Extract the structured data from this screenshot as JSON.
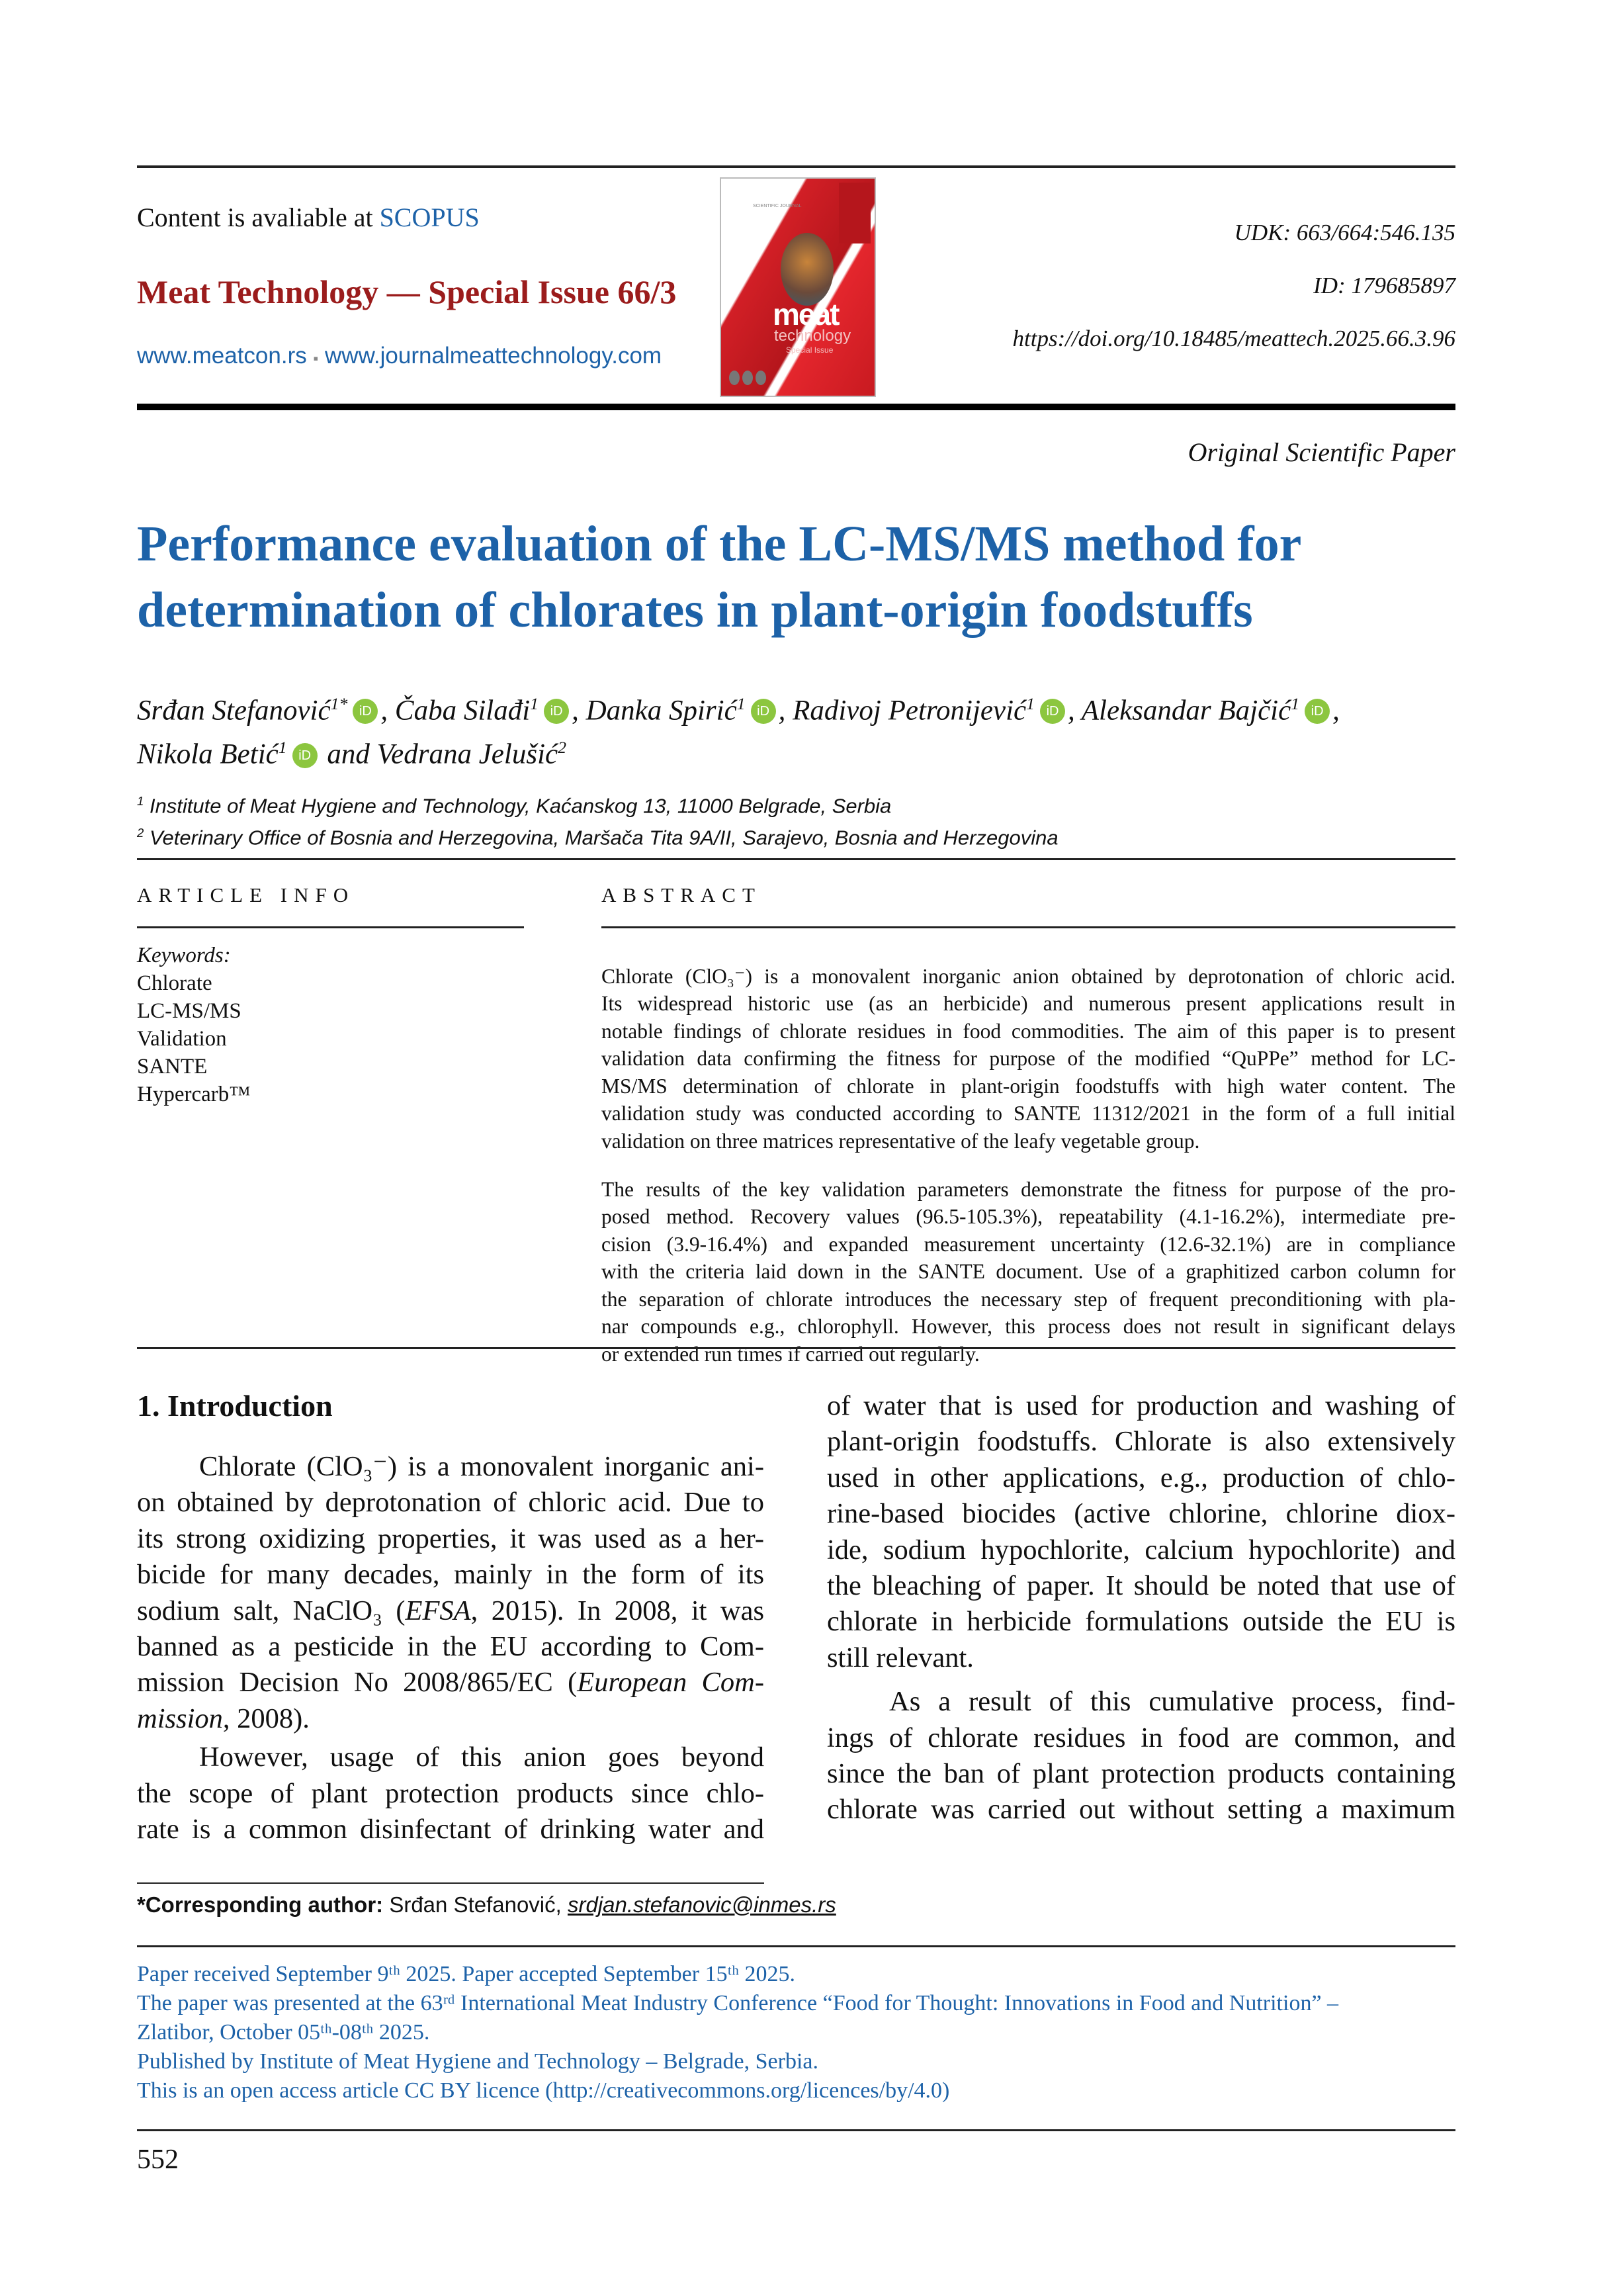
{
  "header": {
    "content_prefix": "Content is avaliable at ",
    "content_link": "SCOPUS",
    "journal_title": "Meat Technology — Special Issue 66/3",
    "site1": "www.meatcon.rs",
    "separator": "▪",
    "site2": "www.journalmeattechnology.com",
    "udk": "UDK: 663/664:546.135",
    "id": "ID: 179685897",
    "doi": "https://doi.org/10.18485/meattech.2025.66.3.96",
    "cover": {
      "journal_label": "SCIENTIFIC JOURNAL",
      "logo_main": "meat",
      "logo_sub": "technology",
      "logo_issue": "Special Issue"
    }
  },
  "paper_type": "Original Scientific Paper",
  "title_lines": [
    "Performance evaluation of the LC-MS/MS method for",
    "determination of chlorates in plant-origin foodstuffs"
  ],
  "authors": [
    {
      "name": "Srđan Stefanović",
      "sup": "1*",
      "sep": ", "
    },
    {
      "name": "Čaba Silađi",
      "sup": "1",
      "sep": ", "
    },
    {
      "name": "Danka Spirić",
      "sup": "1",
      "sep": ", "
    },
    {
      "name": "Radivoj Petronijević",
      "sup": "1",
      "sep": ", "
    },
    {
      "name": "Aleksandar Bajčić",
      "sup": "1",
      "sep": ","
    },
    {
      "name": "Nikola Betić",
      "sup": "1",
      "sep": " and Vedrana Jelušić"
    }
  ],
  "last_author_sup": "2",
  "affiliations": [
    {
      "num": "1",
      "text": " Institute of Meat Hygiene and Technology, Kaćanskog 13, 11000 Belgrade, Serbia"
    },
    {
      "num": "2",
      "text": " Veterinary Office of Bosnia and Herzegovina, Maršača Tita 9A/II, Sarajevo, Bosnia and Herzegovina"
    }
  ],
  "article_info": {
    "heading": "ARTICLE INFO",
    "keywords_label": "Keywords:",
    "keywords": [
      "Chlorate",
      "LC-MS/MS",
      "Validation",
      "SANTE",
      "Hypercarb™"
    ]
  },
  "abstract": {
    "heading": "ABSTRACT",
    "paragraphs": [
      [
        "Chlorate (ClO₃⁻) is a monovalent inorganic anion obtained by deprotonation of chloric acid.",
        "Its widespread historic use (as an herbicide) and numerous present applications result in",
        "notable findings of chlorate residues in food commodities. The aim of this paper is to present",
        "validation data confirming the fitness for purpose of the modified “QuPPe” method for LC-",
        "MS/MS determination of chlorate in plant-origin foodstuffs with high water content. The",
        "validation study was conducted according to SANTE 11312/2021 in the form of a full initial",
        "validation on three matrices representative of the leafy vegetable group."
      ],
      [
        "The results of the key validation parameters demonstrate the fitness for purpose of the pro-",
        "posed method. Recovery values (96.5-105.3%), repeatability (4.1-16.2%), intermediate pre-",
        "cision (3.9-16.4%) and expanded measurement uncertainty (12.6-32.1%) are in compliance",
        "with the criteria laid down in the SANTE document. Use of a graphitized carbon column for",
        "the separation of chlorate introduces the necessary step of frequent preconditioning with pla-",
        "nar compounds e.g., chlorophyll. However, this process does not result in significant delays",
        "or extended run times if carried out regularly."
      ]
    ]
  },
  "introduction": {
    "heading": "1. Introduction",
    "left": [
      {
        "indent": true,
        "ends": true,
        "lines": [
          "Chlorate (ClO₃⁻) is a monovalent inorganic ani-",
          "on obtained by deprotonation of chloric acid. Due to",
          "its strong oxidizing properties, it was used as a her-",
          "bicide for many decades, mainly in the form of its",
          "sodium salt, NaClO₃ (*EFSA*, 2015). In 2008, it was",
          "banned as a pesticide in the EU according to Com-",
          "mission Decision No 2008/865/EC (*European Com-*",
          "*mission*, 2008)."
        ]
      },
      {
        "indent": true,
        "ends": false,
        "lines": [
          "However, usage of this anion goes beyond",
          "the scope of plant protection products since chlo-",
          "rate is a common disinfectant of drinking water and"
        ]
      }
    ],
    "right": [
      {
        "indent": false,
        "ends": true,
        "lines": [
          "of water that is used for production and washing of",
          "plant-origin foodstuffs. Chlorate is also extensively",
          "used in other applications, e.g., production of chlo-",
          "rine-based biocides (active chlorine, chlorine diox-",
          "ide, sodium hypochlorite, calcium hypochlorite) and",
          "the bleaching of paper. It should be noted that use of",
          "chlorate in herbicide formulations outside the EU is",
          "still relevant."
        ]
      },
      {
        "indent": true,
        "ends": false,
        "lines": [
          "As a result of this cumulative process, find-",
          "ings of chlorate residues in food are common, and",
          "since the ban of plant protection products containing",
          "chlorate was carried out without setting a maximum"
        ]
      }
    ]
  },
  "corresponding": {
    "label": "*Corresponding author:",
    "name": " Srđan Stefanović, ",
    "email": "srdjan.stefanovic@inmes.rs"
  },
  "footer_notes": [
    "Paper received September 9ᵗʰ 2025. Paper accepted September 15ᵗʰ 2025.",
    "The paper was presented at the 63ʳᵈ International Meat Industry Conference “Food for Thought: Innovations in Food and Nutrition” –",
    "Zlatibor, October 05ᵗʰ-08ᵗʰ 2025.",
    "Published by Institute of Meat Hygiene and Technology – Belgrade, Serbia.",
    "This is an open access article CC BY licence (http://creativecommons.org/licences/by/4.0)"
  ],
  "page_number": "552",
  "colors": {
    "brand_red": "#9b1c1c",
    "title_blue": "#1d62a8",
    "link_blue": "#1d62a8",
    "orcid_green": "#8cc63f"
  }
}
